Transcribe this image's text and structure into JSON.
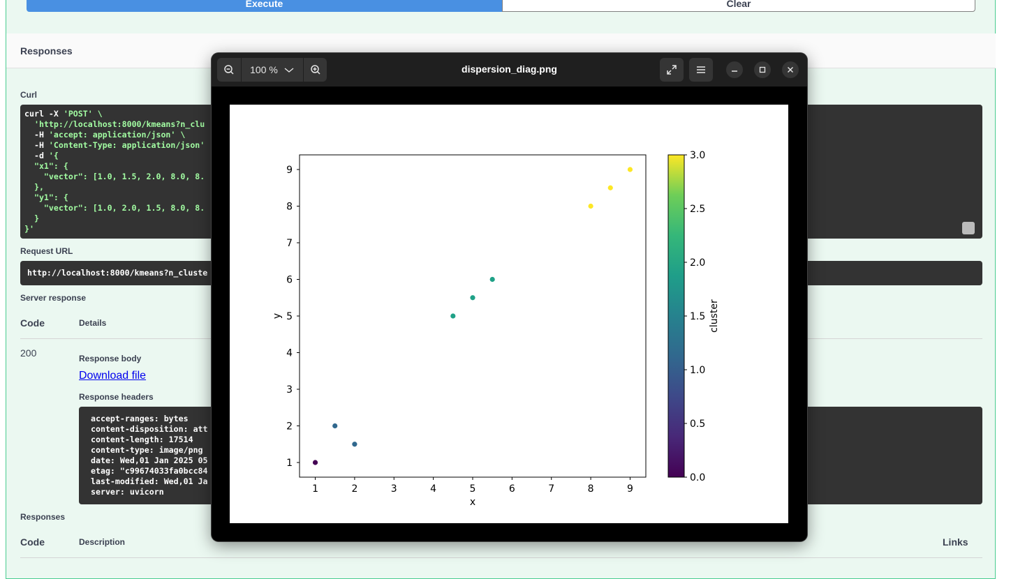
{
  "page": {
    "execute_label": "Execute",
    "clear_label": "Clear",
    "responses_title": "Responses",
    "curl_label": "Curl",
    "curl_lines": [
      {
        "w": "curl -X ",
        "g": "'POST' \\"
      },
      {
        "w": "  ",
        "g": "'http://localhost:8000/kmeans?n_clu"
      },
      {
        "w": "  -H ",
        "g": "'accept: application/json' \\"
      },
      {
        "w": "  -H ",
        "g": "'Content-Type: application/json'"
      },
      {
        "w": "  -d ",
        "g": "'{"
      },
      {
        "w": "",
        "g": "  \"x1\": {"
      },
      {
        "w": "",
        "g": "    \"vector\": [1.0, 1.5, 2.0, 8.0, 8."
      },
      {
        "w": "",
        "g": "  },"
      },
      {
        "w": "",
        "g": "  \"y1\": {"
      },
      {
        "w": "",
        "g": "    \"vector\": [1.0, 2.0, 1.5, 8.0, 8."
      },
      {
        "w": "",
        "g": "  }"
      },
      {
        "w": "",
        "g": "}'"
      }
    ],
    "request_url_label": "Request URL",
    "request_url": "http://localhost:8000/kmeans?n_cluste",
    "server_response_label": "Server response",
    "code_header": "Code",
    "details_header": "Details",
    "status_code": "200",
    "response_body_label": "Response body",
    "download_link": "Download file",
    "response_headers_label": "Response headers",
    "response_headers": "accept-ranges: bytes\ncontent-disposition: att\ncontent-length: 17514\ncontent-type: image/png\ndate: Wed,01 Jan 2025 05\netag: \"c99674033fa0bcc84\nlast-modified: Wed,01 Ja\nserver: uvicorn",
    "responses_label2": "Responses",
    "code_header2": "Code",
    "description_header": "Description",
    "links_header": "Links"
  },
  "viewer": {
    "zoom_level": "100 %",
    "filename": "dispersion_diag.png",
    "icons": [
      "zoom-out-icon",
      "chevron-down-icon",
      "zoom-in-icon",
      "fullscreen-icon",
      "menu-icon",
      "minimize-icon",
      "maximize-icon",
      "close-icon"
    ]
  },
  "chart_data": {
    "type": "scatter",
    "xlabel": "x",
    "ylabel": "y",
    "colorbar_label": "cluster",
    "colormap": "viridis",
    "colorbar_range": [
      0.0,
      3.0
    ],
    "colorbar_ticks": [
      "0.0",
      "0.5",
      "1.0",
      "1.5",
      "2.0",
      "2.5",
      "3.0"
    ],
    "xlim": [
      0.6,
      9.4
    ],
    "ylim": [
      0.6,
      9.4
    ],
    "xticks": [
      1,
      2,
      3,
      4,
      5,
      6,
      7,
      8,
      9
    ],
    "yticks": [
      1,
      2,
      3,
      4,
      5,
      6,
      7,
      8,
      9
    ],
    "points": [
      {
        "x": 1.0,
        "y": 1.0,
        "cluster": 0
      },
      {
        "x": 1.5,
        "y": 2.0,
        "cluster": 1
      },
      {
        "x": 2.0,
        "y": 1.5,
        "cluster": 1
      },
      {
        "x": 4.5,
        "y": 5.0,
        "cluster": 2
      },
      {
        "x": 5.0,
        "y": 5.5,
        "cluster": 2
      },
      {
        "x": 5.5,
        "y": 6.0,
        "cluster": 2
      },
      {
        "x": 8.0,
        "y": 8.0,
        "cluster": 3
      },
      {
        "x": 8.5,
        "y": 8.5,
        "cluster": 3
      },
      {
        "x": 9.0,
        "y": 9.0,
        "cluster": 3
      }
    ],
    "cluster_colors": [
      "#440154",
      "#31688e",
      "#1fa187",
      "#fde725"
    ]
  }
}
